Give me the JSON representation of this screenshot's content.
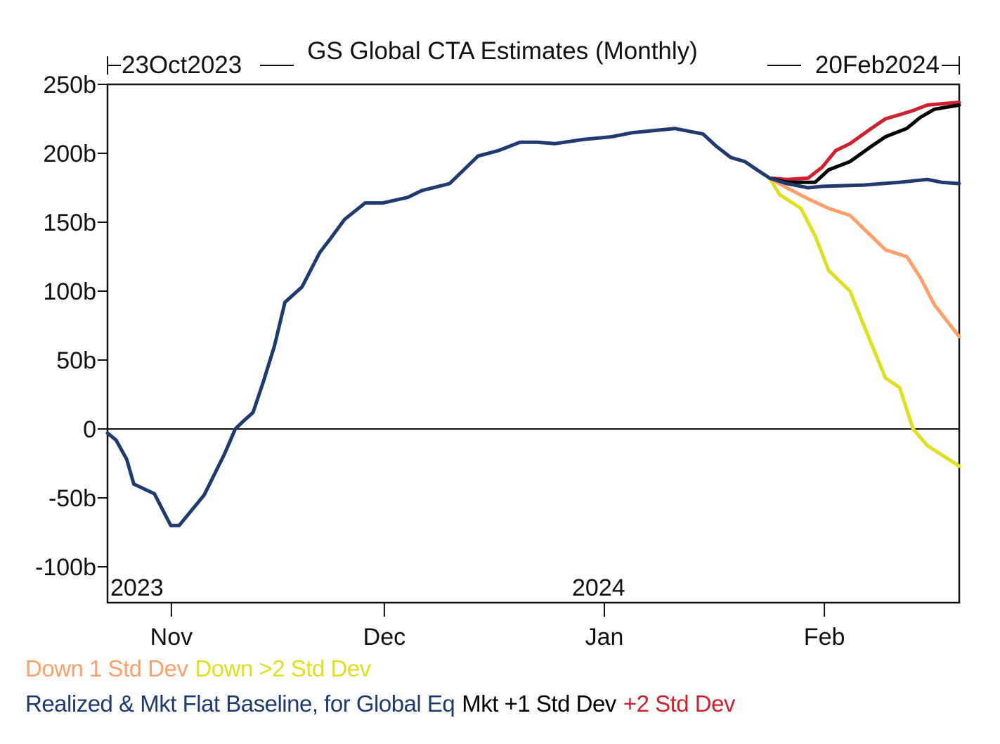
{
  "chart_data": {
    "type": "line",
    "title": "GS Global CTA Estimates (Monthly)",
    "range_start_label": "23Oct2023",
    "range_end_label": "20Feb2024",
    "x_unit": "days since 23Oct2023",
    "xlim": [
      0,
      120
    ],
    "ylim": [
      -126,
      250
    ],
    "y_ticks": [
      {
        "value": 250,
        "label": "250b"
      },
      {
        "value": 200,
        "label": "200b"
      },
      {
        "value": 150,
        "label": "150b"
      },
      {
        "value": 100,
        "label": "100b"
      },
      {
        "value": 50,
        "label": "50b"
      },
      {
        "value": 0,
        "label": "0"
      },
      {
        "value": -50,
        "label": "-50b"
      },
      {
        "value": -100,
        "label": "-100b"
      }
    ],
    "x_ticks": [
      {
        "day": 9,
        "label": "Nov"
      },
      {
        "day": 39,
        "label": "Dec"
      },
      {
        "day": 70,
        "label": "Jan"
      },
      {
        "day": 101,
        "label": "Feb"
      }
    ],
    "year_labels": [
      {
        "day": 0,
        "label": "2023"
      },
      {
        "day": 70,
        "label": "2024"
      }
    ],
    "grid": false,
    "zero_line": true,
    "legend_position": "bottom",
    "series": [
      {
        "name": "Realized & Mkt Flat Baseline, for Global Eq",
        "color": "#1f3a6e",
        "points": [
          [
            0,
            -3
          ],
          [
            1.2,
            -8
          ],
          [
            2.7,
            -22
          ],
          [
            3.7,
            -40
          ],
          [
            6.6,
            -47
          ],
          [
            8.9,
            -70
          ],
          [
            10.1,
            -70
          ],
          [
            13.6,
            -48
          ],
          [
            16.5,
            -18
          ],
          [
            18,
            0
          ],
          [
            19,
            5
          ],
          [
            20.5,
            12
          ],
          [
            22,
            35
          ],
          [
            23.5,
            60
          ],
          [
            25,
            92
          ],
          [
            27.4,
            103
          ],
          [
            29.9,
            128
          ],
          [
            31.4,
            138
          ],
          [
            33.4,
            152
          ],
          [
            36.3,
            164
          ],
          [
            38.8,
            164
          ],
          [
            42.3,
            168
          ],
          [
            44.3,
            173
          ],
          [
            48.2,
            178
          ],
          [
            50.2,
            188
          ],
          [
            52.2,
            198
          ],
          [
            55.1,
            202
          ],
          [
            58.1,
            208
          ],
          [
            60.6,
            208
          ],
          [
            63,
            207
          ],
          [
            67,
            210
          ],
          [
            71,
            212
          ],
          [
            74,
            215
          ],
          [
            77.9,
            217
          ],
          [
            79.9,
            218
          ],
          [
            83.9,
            214
          ],
          [
            85.8,
            205
          ],
          [
            87.8,
            197
          ],
          [
            89.8,
            194
          ],
          [
            91.8,
            187
          ],
          [
            93.3,
            182
          ],
          [
            95.7,
            178
          ],
          [
            98.7,
            175
          ],
          [
            100.7,
            176
          ],
          [
            106.6,
            177
          ],
          [
            111.6,
            179
          ],
          [
            115.5,
            181
          ],
          [
            117.5,
            179
          ],
          [
            120,
            178
          ]
        ]
      },
      {
        "name": "Mkt +1 Std Dev",
        "color": "#000000",
        "points": [
          [
            93.3,
            182
          ],
          [
            95.7,
            179
          ],
          [
            99.7,
            179
          ],
          [
            101.6,
            188
          ],
          [
            104.6,
            194
          ],
          [
            107.6,
            205
          ],
          [
            109.6,
            212
          ],
          [
            112.6,
            218
          ],
          [
            114.5,
            226
          ],
          [
            116.5,
            232
          ],
          [
            120,
            235
          ]
        ]
      },
      {
        "name": "+2 Std Dev",
        "color": "#d0202e",
        "points": [
          [
            93.3,
            182
          ],
          [
            95.7,
            181
          ],
          [
            98.7,
            182
          ],
          [
            100.7,
            190
          ],
          [
            102.6,
            202
          ],
          [
            104.6,
            207
          ],
          [
            107.6,
            218
          ],
          [
            109.6,
            225
          ],
          [
            111.6,
            228
          ],
          [
            113.5,
            231
          ],
          [
            115.5,
            235
          ],
          [
            120,
            237
          ]
        ]
      },
      {
        "name": "Down 1 Std Dev",
        "color": "#ff9f6b",
        "points": [
          [
            93.3,
            182
          ],
          [
            95.7,
            175
          ],
          [
            98.7,
            167
          ],
          [
            101.6,
            160
          ],
          [
            104.6,
            155
          ],
          [
            107.6,
            140
          ],
          [
            109.6,
            130
          ],
          [
            112.6,
            125
          ],
          [
            114.5,
            110
          ],
          [
            116.5,
            90
          ],
          [
            120,
            67
          ]
        ]
      },
      {
        "name": "Down >2 Std Dev",
        "color": "#e0e020",
        "points": [
          [
            93.3,
            182
          ],
          [
            94.7,
            170
          ],
          [
            97.7,
            160
          ],
          [
            99.7,
            140
          ],
          [
            101.6,
            115
          ],
          [
            104.6,
            100
          ],
          [
            107.6,
            62
          ],
          [
            109.6,
            37
          ],
          [
            111.6,
            30
          ],
          [
            113.5,
            0
          ],
          [
            115.5,
            -12
          ],
          [
            120,
            -27
          ]
        ]
      }
    ],
    "legend": {
      "row1": [
        {
          "text": "Down 1 Std Dev",
          "color": "#ff9f6b"
        },
        {
          "text": "Down >2 Std Dev",
          "color": "#e0e020"
        }
      ],
      "row2": [
        {
          "text": "Realized & Mkt Flat Baseline, for Global Eq",
          "color": "#1f3a6e"
        },
        {
          "text": "Mkt +1 Std Dev",
          "color": "#000000"
        },
        {
          "text": "+2 Std Dev",
          "color": "#d0202e"
        }
      ]
    }
  }
}
